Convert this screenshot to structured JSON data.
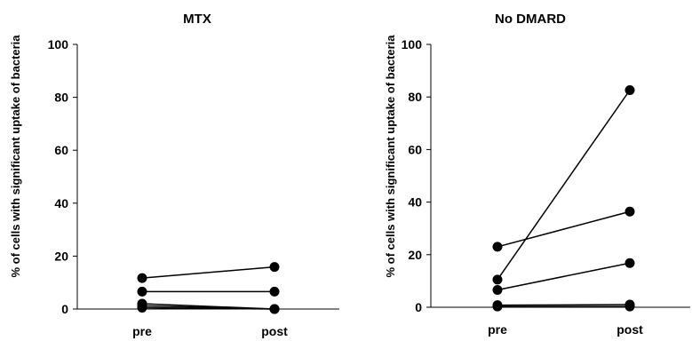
{
  "chart_data": [
    {
      "type": "line",
      "title": "MTX",
      "xlabel": "",
      "ylabel": "% of cells with significant uptake of bacteria",
      "categories": [
        "pre",
        "post"
      ],
      "ylim": [
        0,
        100
      ],
      "yticks": [
        "0",
        "20",
        "40",
        "60",
        "80",
        "100"
      ],
      "grid": false,
      "series": [
        {
          "values": [
            11.7,
            15.9
          ]
        },
        {
          "values": [
            6.6,
            6.6
          ]
        },
        {
          "values": [
            2.0,
            0.0
          ]
        },
        {
          "values": [
            1.2,
            0.0
          ]
        },
        {
          "values": [
            0.5,
            0.0
          ]
        }
      ],
      "marker_color": "#000000"
    },
    {
      "type": "line",
      "title": "No DMARD",
      "xlabel": "",
      "ylabel": "% of cells with significant uptake of bacteria",
      "categories": [
        "pre",
        "post"
      ],
      "ylim": [
        0,
        100
      ],
      "yticks": [
        "0",
        "20",
        "40",
        "60",
        "80",
        "100"
      ],
      "grid": false,
      "series": [
        {
          "values": [
            10.5,
            82.6
          ]
        },
        {
          "values": [
            23.0,
            36.4
          ]
        },
        {
          "values": [
            6.6,
            16.8
          ]
        },
        {
          "values": [
            0.8,
            1.0
          ]
        },
        {
          "values": [
            0.3,
            0.3
          ]
        }
      ],
      "marker_color": "#000000"
    }
  ]
}
